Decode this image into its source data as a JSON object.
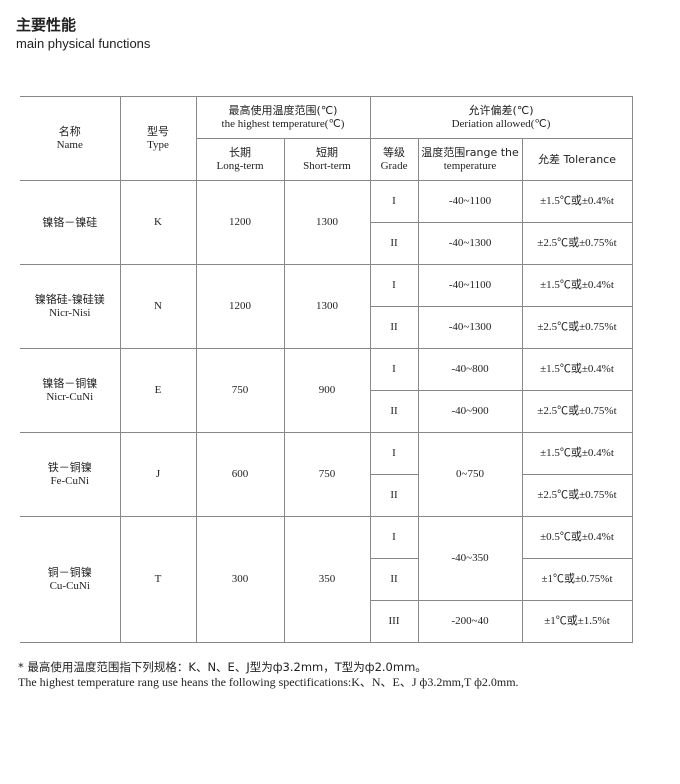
{
  "title_cn": "主要性能",
  "title_en": "main physical functions",
  "headers": {
    "name_cn": "名称",
    "name_en": "Name",
    "type_cn": "型号",
    "type_en": "Type",
    "maxtemp_cn": "最高使用温度范围(℃)",
    "maxtemp_en": "the highest temperature(℃)",
    "long_cn": "长期",
    "long_en": "Long-term",
    "short_cn": "短期",
    "short_en": "Short-term",
    "dev_cn": "允许偏差(℃)",
    "dev_en": "Deriation allowed(℃)",
    "grade_cn": "等级",
    "grade_en": "Grade",
    "range_cn": "温度范围range the",
    "range_en": "temperature",
    "tol": "允差 Tolerance"
  },
  "groups": [
    {
      "name_cn": "镍铬－镍硅",
      "name_en": "",
      "type": "K",
      "long": "1200",
      "short": "1300",
      "rows": [
        {
          "grade": "I",
          "range": "-40~1100",
          "tol": "±1.5℃或±0.4%t"
        },
        {
          "grade": "II",
          "range": "-40~1300",
          "tol": "±2.5℃或±0.75%t"
        }
      ]
    },
    {
      "name_cn": "镍铬硅-镍硅镁",
      "name_en": "Nicr-Nisi",
      "type": "N",
      "long": "1200",
      "short": "1300",
      "rows": [
        {
          "grade": "I",
          "range": "-40~1100",
          "tol": "±1.5℃或±0.4%t"
        },
        {
          "grade": "II",
          "range": "-40~1300",
          "tol": "±2.5℃或±0.75%t"
        }
      ]
    },
    {
      "name_cn": "镍铬－铜镍",
      "name_en": "Nicr-CuNi",
      "type": "E",
      "long": "750",
      "short": "900",
      "rows": [
        {
          "grade": "I",
          "range": "-40~800",
          "tol": "±1.5℃或±0.4%t"
        },
        {
          "grade": "II",
          "range": "-40~900",
          "tol": "±2.5℃或±0.75%t"
        }
      ]
    },
    {
      "name_cn": "铁－铜镍",
      "name_en": "Fe-CuNi",
      "type": "J",
      "long": "600",
      "short": "750",
      "range": "0~750",
      "rows": [
        {
          "grade": "I",
          "tol": "±1.5℃或±0.4%t"
        },
        {
          "grade": "II",
          "tol": "±2.5℃或±0.75%t"
        }
      ]
    },
    {
      "name_cn": "铜－铜镍",
      "name_en": "Cu-CuNi",
      "type": "T",
      "long": "300",
      "short": "350",
      "range12": "-40~350",
      "rows": [
        {
          "grade": "I",
          "tol": "±0.5℃或±0.4%t"
        },
        {
          "grade": "II",
          "tol": "±1℃或±0.75%t"
        },
        {
          "grade": "III",
          "range": "-200~40",
          "tol": "±1℃或±1.5%t"
        }
      ]
    }
  ],
  "note_cn": "* 最高使用温度范围指下列规格：K、N、E、J型为ф3.2mm，T型为ф2.0mm。",
  "note_en": "The highest temperature rang use heans the following spectifications:K、N、E、J  ф3.2mm,T  ф2.0mm."
}
